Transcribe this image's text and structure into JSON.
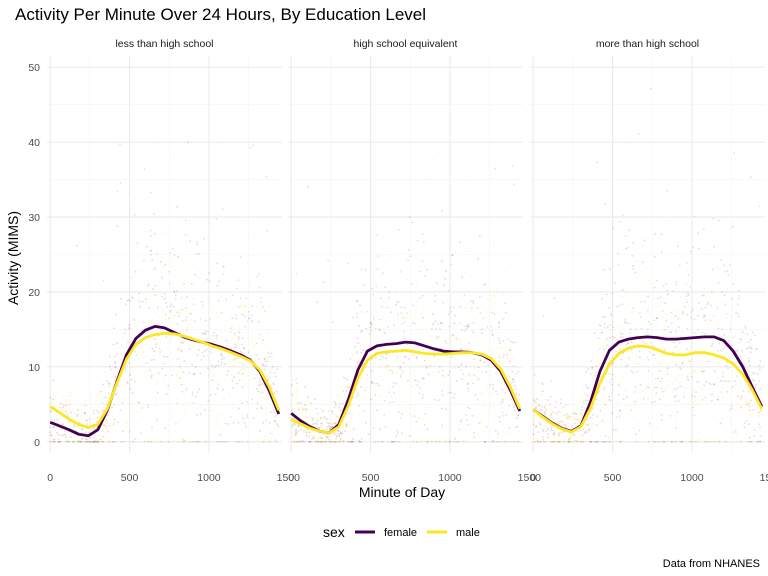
{
  "chart_data": {
    "type": "scatter",
    "title": "Activity Per Minute Over 24 Hours, By Education Level",
    "xlabel": "Minute of Day",
    "ylabel": "Activity (MIMS)",
    "caption": "Data from NHANES",
    "xlim": [
      -20,
      1460
    ],
    "ylim": [
      -1.5,
      51.5
    ],
    "x_ticks": [
      0,
      500,
      1000,
      1500
    ],
    "y_ticks": [
      0,
      10,
      20,
      30,
      40,
      50
    ],
    "grid": true,
    "legend": {
      "title": "sex",
      "position": "bottom",
      "entries": [
        {
          "label": "female",
          "color": "#440154"
        },
        {
          "label": "male",
          "color": "#FDE725"
        }
      ]
    },
    "colors": {
      "female": "#440154",
      "male": "#FDE725"
    },
    "panels": [
      {
        "label": "less than high school",
        "smooth": {
          "female": {
            "x": [
              0,
              60,
              120,
              180,
              240,
              300,
              360,
              420,
              480,
              540,
              600,
              660,
              720,
              780,
              840,
              900,
              960,
              1020,
              1080,
              1140,
              1200,
              1260,
              1320,
              1380,
              1440
            ],
            "y": [
              2.6,
              2.1,
              1.6,
              1.0,
              0.8,
              1.6,
              4.2,
              8.0,
              11.6,
              13.8,
              14.9,
              15.4,
              15.2,
              14.6,
              14.0,
              13.6,
              13.3,
              13.0,
              12.6,
              12.1,
              11.6,
              10.9,
              9.4,
              6.8,
              3.7
            ]
          },
          "male": {
            "x": [
              0,
              60,
              120,
              180,
              240,
              300,
              360,
              420,
              480,
              540,
              600,
              660,
              720,
              780,
              840,
              900,
              960,
              1020,
              1080,
              1140,
              1200,
              1260,
              1320,
              1380,
              1440
            ],
            "y": [
              4.7,
              3.9,
              3.0,
              2.3,
              1.9,
              2.3,
              4.4,
              7.8,
              11.0,
              13.0,
              13.9,
              14.3,
              14.5,
              14.4,
              14.1,
              13.7,
              13.3,
              12.8,
              12.4,
              11.9,
              11.4,
              10.8,
              9.6,
              7.3,
              4.2
            ]
          }
        },
        "points": {
          "peak_y": 42,
          "peak_x": 560
        }
      },
      {
        "label": "high school equivalent",
        "smooth": {
          "female": {
            "x": [
              0,
              60,
              120,
              180,
              240,
              300,
              360,
              420,
              480,
              540,
              600,
              660,
              720,
              780,
              840,
              900,
              960,
              1020,
              1080,
              1140,
              1200,
              1260,
              1320,
              1380,
              1440
            ],
            "y": [
              3.8,
              2.8,
              2.0,
              1.4,
              1.2,
              2.3,
              5.6,
              9.6,
              12.1,
              12.8,
              13.0,
              13.1,
              13.3,
              13.2,
              12.8,
              12.4,
              12.1,
              12.0,
              12.0,
              11.9,
              11.6,
              10.9,
              9.4,
              6.9,
              4.1
            ]
          },
          "male": {
            "x": [
              0,
              60,
              120,
              180,
              240,
              300,
              360,
              420,
              480,
              540,
              600,
              660,
              720,
              780,
              840,
              900,
              960,
              1020,
              1080,
              1140,
              1200,
              1260,
              1320,
              1380,
              1440
            ],
            "y": [
              3.0,
              2.4,
              1.8,
              1.4,
              1.2,
              2.0,
              4.8,
              8.5,
              10.9,
              11.8,
              12.0,
              12.1,
              12.2,
              12.0,
              11.8,
              11.7,
              11.7,
              11.8,
              11.9,
              11.9,
              11.7,
              11.1,
              9.7,
              7.3,
              4.4
            ]
          }
        },
        "points": {
          "peak_y": 38,
          "peak_x": 520
        }
      },
      {
        "label": "more than high school",
        "smooth": {
          "female": {
            "x": [
              0,
              60,
              120,
              180,
              240,
              300,
              360,
              420,
              480,
              540,
              600,
              660,
              720,
              780,
              840,
              900,
              960,
              1020,
              1080,
              1140,
              1200,
              1260,
              1320,
              1380,
              1440
            ],
            "y": [
              4.3,
              3.4,
              2.5,
              1.8,
              1.4,
              2.1,
              5.2,
              9.4,
              12.2,
              13.3,
              13.7,
              13.9,
              14.0,
              13.9,
              13.7,
              13.7,
              13.8,
              13.9,
              14.0,
              14.0,
              13.5,
              12.1,
              10.0,
              7.3,
              4.7
            ]
          },
          "male": {
            "x": [
              0,
              60,
              120,
              180,
              240,
              300,
              360,
              420,
              480,
              540,
              600,
              660,
              720,
              780,
              840,
              900,
              960,
              1020,
              1080,
              1140,
              1200,
              1260,
              1320,
              1380,
              1440
            ],
            "y": [
              4.3,
              3.3,
              2.4,
              1.7,
              1.3,
              2.0,
              4.4,
              7.8,
              10.4,
              11.8,
              12.5,
              12.8,
              12.7,
              12.3,
              11.8,
              11.6,
              11.6,
              11.9,
              11.9,
              11.6,
              11.2,
              10.4,
              9.0,
              6.9,
              4.4
            ]
          }
        },
        "points": {
          "peak_y": 49,
          "peak_x": 420
        }
      }
    ]
  }
}
